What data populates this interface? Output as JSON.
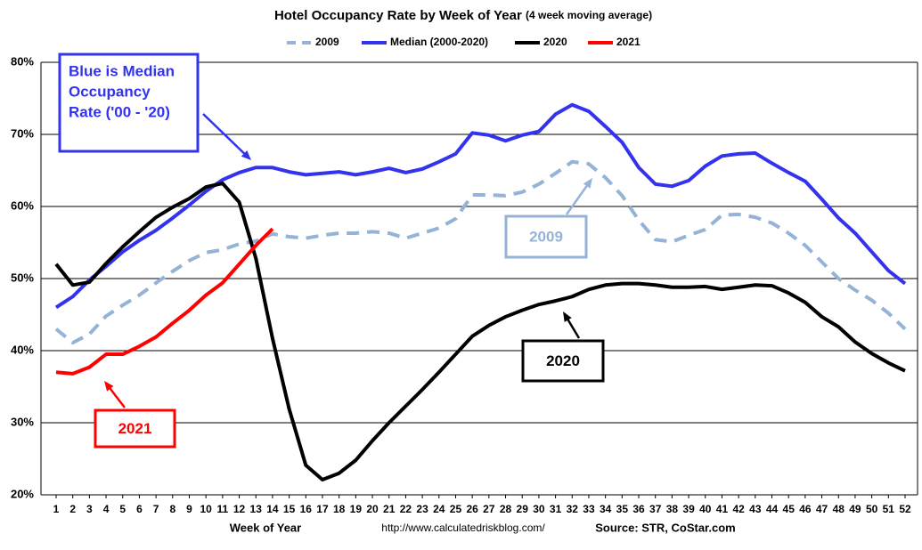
{
  "chart_data": {
    "type": "line",
    "title": "Hotel Occupancy Rate by  Week of Year",
    "subtitle": "(4 week moving average)",
    "x_label": "Week of Year",
    "footer": [
      "http://www.calculatedriskblog.com/",
      "Source: STR, CoStar.com"
    ],
    "categories": [
      1,
      2,
      3,
      4,
      5,
      6,
      7,
      8,
      9,
      10,
      11,
      12,
      13,
      14,
      15,
      16,
      17,
      18,
      19,
      20,
      21,
      22,
      23,
      24,
      25,
      26,
      27,
      28,
      29,
      30,
      31,
      32,
      33,
      34,
      35,
      36,
      37,
      38,
      39,
      40,
      41,
      42,
      43,
      44,
      45,
      46,
      47,
      48,
      49,
      50,
      51,
      52
    ],
    "ylim": [
      20,
      80
    ],
    "yticks": [
      {
        "value": 20,
        "label": "20%"
      },
      {
        "value": 30,
        "label": "30%"
      },
      {
        "value": 40,
        "label": "40%"
      },
      {
        "value": 50,
        "label": "50%"
      },
      {
        "value": 60,
        "label": "60%"
      },
      {
        "value": 70,
        "label": "70%"
      },
      {
        "value": 80,
        "label": "80%"
      }
    ],
    "grid": true,
    "legend": "top",
    "series": [
      {
        "name": "2009",
        "color": "#95b3d7",
        "dashed": true,
        "values": [
          43.0,
          41.1,
          42.3,
          44.8,
          46.3,
          47.7,
          49.4,
          51.0,
          52.5,
          53.6,
          54.0,
          54.8,
          55.2,
          56.2,
          55.8,
          55.6,
          56.0,
          56.3,
          56.3,
          56.5,
          56.3,
          55.6,
          56.3,
          57.0,
          58.3,
          61.6,
          61.6,
          61.5,
          62.0,
          63.1,
          64.6,
          66.2,
          65.9,
          64.0,
          61.5,
          58.1,
          55.4,
          55.1,
          56.0,
          56.8,
          58.8,
          58.9,
          58.5,
          57.7,
          56.3,
          54.6,
          52.3,
          50.0,
          48.4,
          47.0,
          45.2,
          43.0
        ]
      },
      {
        "name": "Median (2000-2020)",
        "color": "#3333ee",
        "values": [
          46.0,
          47.5,
          49.8,
          51.7,
          53.7,
          55.3,
          56.7,
          58.4,
          60.2,
          62.1,
          63.7,
          64.7,
          65.4,
          65.4,
          64.8,
          64.4,
          64.6,
          64.8,
          64.4,
          64.8,
          65.3,
          64.7,
          65.2,
          66.2,
          67.3,
          70.2,
          69.9,
          69.1,
          69.9,
          70.4,
          72.8,
          74.1,
          73.2,
          71.1,
          68.9,
          65.4,
          63.1,
          62.8,
          63.6,
          65.6,
          67.0,
          67.3,
          67.4,
          66.0,
          64.7,
          63.5,
          61.0,
          58.4,
          56.3,
          53.7,
          51.1,
          49.3
        ]
      },
      {
        "name": "2020",
        "color": "#000000",
        "values": [
          52.0,
          49.1,
          49.5,
          52.1,
          54.4,
          56.5,
          58.5,
          59.9,
          61.1,
          62.7,
          63.2,
          60.6,
          52.8,
          41.7,
          31.9,
          24.1,
          22.1,
          23.0,
          24.8,
          27.5,
          30.0,
          32.3,
          34.6,
          37.0,
          39.5,
          42.0,
          43.5,
          44.7,
          45.6,
          46.4,
          46.9,
          47.5,
          48.5,
          49.1,
          49.3,
          49.3,
          49.1,
          48.8,
          48.8,
          48.9,
          48.5,
          48.8,
          49.1,
          49.0,
          48.0,
          46.7,
          44.7,
          43.3,
          41.2,
          39.6,
          38.3,
          37.2
        ]
      },
      {
        "name": "2021",
        "color": "#ff0000",
        "values": [
          37.0,
          36.8,
          37.7,
          39.5,
          39.5,
          40.6,
          41.9,
          43.8,
          45.6,
          47.7,
          49.4,
          52.0,
          54.6,
          56.9,
          null,
          null,
          null,
          null,
          null,
          null,
          null,
          null,
          null,
          null,
          null,
          null,
          null,
          null,
          null,
          null,
          null,
          null,
          null,
          null,
          null,
          null,
          null,
          null,
          null,
          null,
          null,
          null,
          null,
          null,
          null,
          null,
          null,
          null,
          null,
          null,
          null,
          null
        ]
      }
    ],
    "annotations": [
      {
        "lines": [
          "Blue is Median",
          "Occupancy",
          "Rate ('00 - '20)"
        ],
        "color": "#3333ee"
      },
      {
        "lines": [
          "2009"
        ],
        "color": "#95b3d7"
      },
      {
        "lines": [
          "2020"
        ],
        "color": "#000000"
      },
      {
        "lines": [
          "2021"
        ],
        "color": "#ff0000"
      }
    ]
  }
}
